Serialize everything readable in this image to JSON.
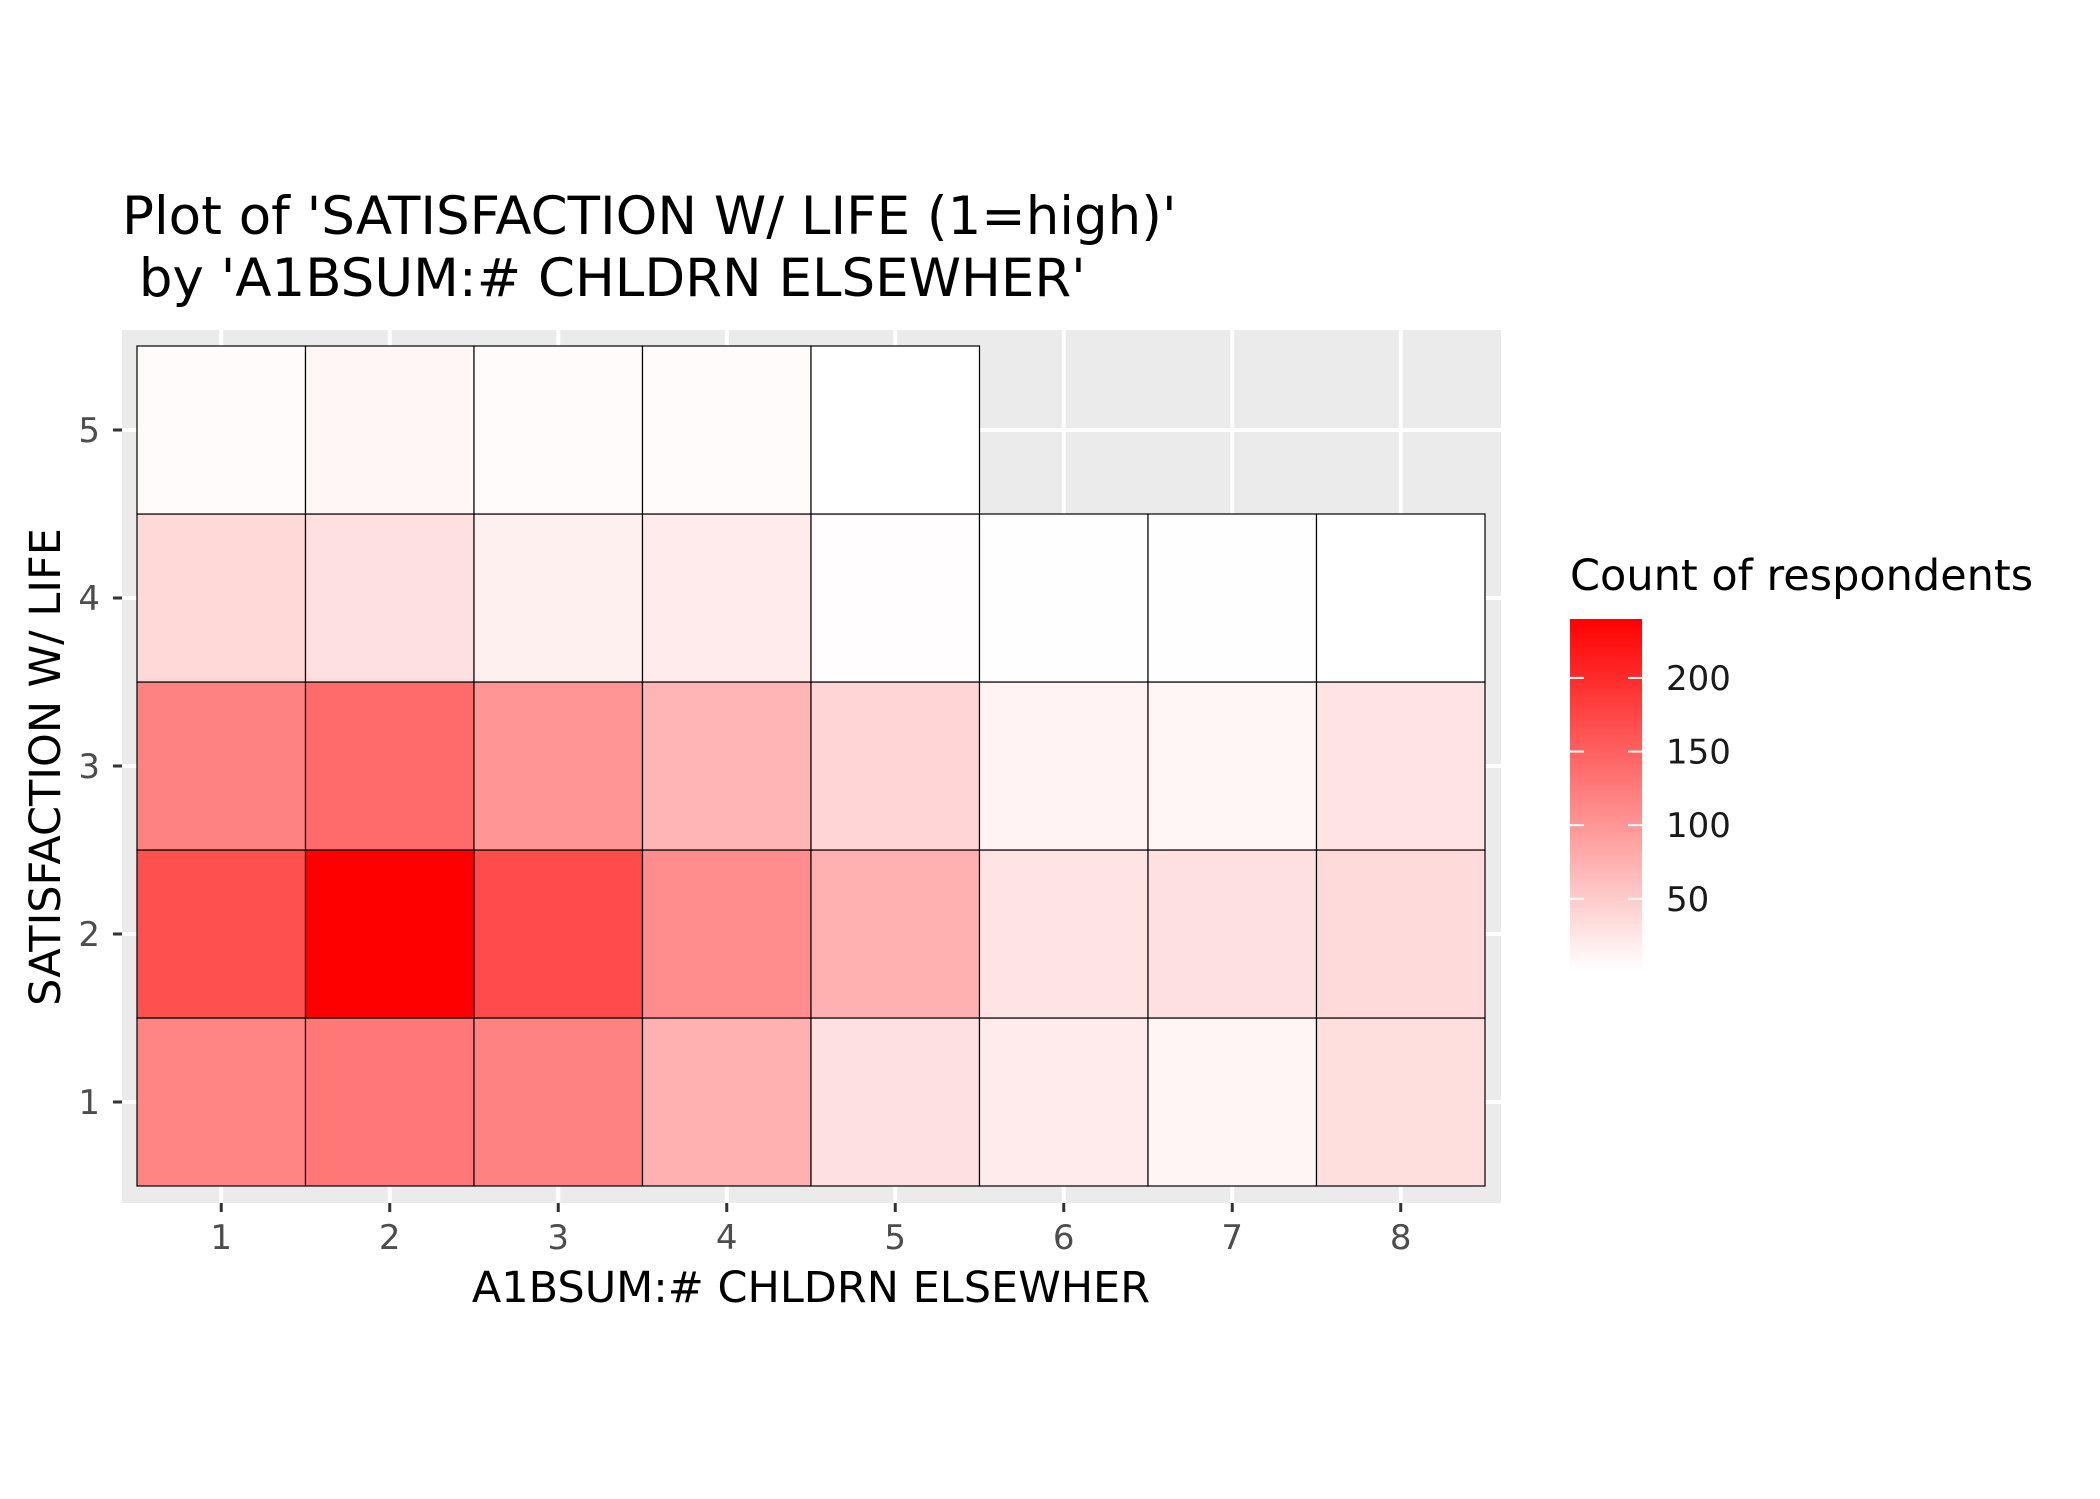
{
  "chart_data": {
    "type": "heatmap",
    "title": [
      "Plot of 'SATISFACTION W/ LIFE (1=high)'",
      " by 'A1BSUM:# CHLDRN ELSEWHER'"
    ],
    "xlabel": "A1BSUM:# CHLDRN ELSEWHER",
    "ylabel": "SATISFACTION W/ LIFE",
    "x_categories": [
      1,
      2,
      3,
      4,
      5,
      6,
      7,
      8
    ],
    "y_categories": [
      1,
      2,
      3,
      4,
      5
    ],
    "xlim": [
      0.5,
      8.5
    ],
    "ylim": [
      0.5,
      5.5
    ],
    "grid": true,
    "cells": [
      {
        "x": 1,
        "y": 1,
        "value": 115
      },
      {
        "x": 2,
        "y": 1,
        "value": 128
      },
      {
        "x": 3,
        "y": 1,
        "value": 118
      },
      {
        "x": 4,
        "y": 1,
        "value": 74
      },
      {
        "x": 5,
        "y": 1,
        "value": 30
      },
      {
        "x": 6,
        "y": 1,
        "value": 20
      },
      {
        "x": 7,
        "y": 1,
        "value": 10
      },
      {
        "x": 8,
        "y": 1,
        "value": 32
      },
      {
        "x": 1,
        "y": 2,
        "value": 165
      },
      {
        "x": 2,
        "y": 2,
        "value": 240
      },
      {
        "x": 3,
        "y": 2,
        "value": 170
      },
      {
        "x": 4,
        "y": 2,
        "value": 108
      },
      {
        "x": 5,
        "y": 2,
        "value": 74
      },
      {
        "x": 6,
        "y": 2,
        "value": 26
      },
      {
        "x": 7,
        "y": 2,
        "value": 30
      },
      {
        "x": 8,
        "y": 2,
        "value": 36
      },
      {
        "x": 1,
        "y": 3,
        "value": 118
      },
      {
        "x": 2,
        "y": 3,
        "value": 140
      },
      {
        "x": 3,
        "y": 3,
        "value": 100
      },
      {
        "x": 4,
        "y": 3,
        "value": 70
      },
      {
        "x": 5,
        "y": 3,
        "value": 40
      },
      {
        "x": 6,
        "y": 3,
        "value": 12
      },
      {
        "x": 7,
        "y": 3,
        "value": 9
      },
      {
        "x": 8,
        "y": 3,
        "value": 26
      },
      {
        "x": 1,
        "y": 4,
        "value": 38
      },
      {
        "x": 2,
        "y": 4,
        "value": 30
      },
      {
        "x": 3,
        "y": 4,
        "value": 15
      },
      {
        "x": 4,
        "y": 4,
        "value": 20
      },
      {
        "x": 5,
        "y": 4,
        "value": 3
      },
      {
        "x": 6,
        "y": 4,
        "value": 2
      },
      {
        "x": 7,
        "y": 4,
        "value": 2
      },
      {
        "x": 8,
        "y": 4,
        "value": 1
      },
      {
        "x": 1,
        "y": 5,
        "value": 5
      },
      {
        "x": 2,
        "y": 5,
        "value": 9
      },
      {
        "x": 3,
        "y": 5,
        "value": 5
      },
      {
        "x": 4,
        "y": 5,
        "value": 5
      },
      {
        "x": 5,
        "y": 5,
        "value": 1
      }
    ],
    "color_scale": {
      "low": "#ffffff",
      "high": "#ff0000",
      "min": 1,
      "max": 240
    },
    "legend": {
      "title": "Count of respondents",
      "breaks": [
        50,
        100,
        150,
        200
      ],
      "placement": "right"
    },
    "colors": {
      "panel_background": "#ebebeb",
      "grid": "#ffffff",
      "tile_border": "#000000"
    }
  }
}
